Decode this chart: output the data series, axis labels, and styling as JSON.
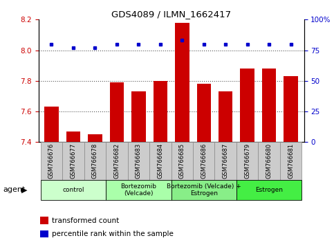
{
  "title": "GDS4089 / ILMN_1662417",
  "samples": [
    "GSM766676",
    "GSM766677",
    "GSM766678",
    "GSM766682",
    "GSM766683",
    "GSM766684",
    "GSM766685",
    "GSM766686",
    "GSM766687",
    "GSM766679",
    "GSM766680",
    "GSM766681"
  ],
  "bar_values": [
    7.63,
    7.47,
    7.45,
    7.79,
    7.73,
    7.8,
    8.18,
    7.78,
    7.73,
    7.88,
    7.88,
    7.83
  ],
  "dot_values": [
    80,
    77,
    77,
    80,
    80,
    80,
    83,
    80,
    80,
    80,
    80,
    80
  ],
  "bar_color": "#cc0000",
  "dot_color": "#0000cc",
  "ylim_left": [
    7.4,
    8.2
  ],
  "ylim_right": [
    0,
    100
  ],
  "yticks_left": [
    7.4,
    7.6,
    7.8,
    8.0,
    8.2
  ],
  "yticks_right": [
    0,
    25,
    50,
    75,
    100
  ],
  "ytick_labels_right": [
    "0",
    "25",
    "50",
    "75",
    "100%"
  ],
  "groups": [
    {
      "label": "control",
      "start": 0,
      "end": 3,
      "color": "#ccffcc"
    },
    {
      "label": "Bortezomib\n(Velcade)",
      "start": 3,
      "end": 6,
      "color": "#aaffaa"
    },
    {
      "label": "Bortezomib (Velcade) +\nEstrogen",
      "start": 6,
      "end": 9,
      "color": "#88ee88"
    },
    {
      "label": "Estrogen",
      "start": 9,
      "end": 12,
      "color": "#44ee44"
    }
  ],
  "legend_bar_label": "transformed count",
  "legend_dot_label": "percentile rank within the sample",
  "bar_color_left": "#cc0000",
  "tick_color_left": "#cc0000",
  "tick_color_right": "#0000cc",
  "dot_color_right": "#0000cc",
  "dotted_line_color": "#555555",
  "sample_box_color": "#cccccc",
  "sample_box_edge": "#888888"
}
